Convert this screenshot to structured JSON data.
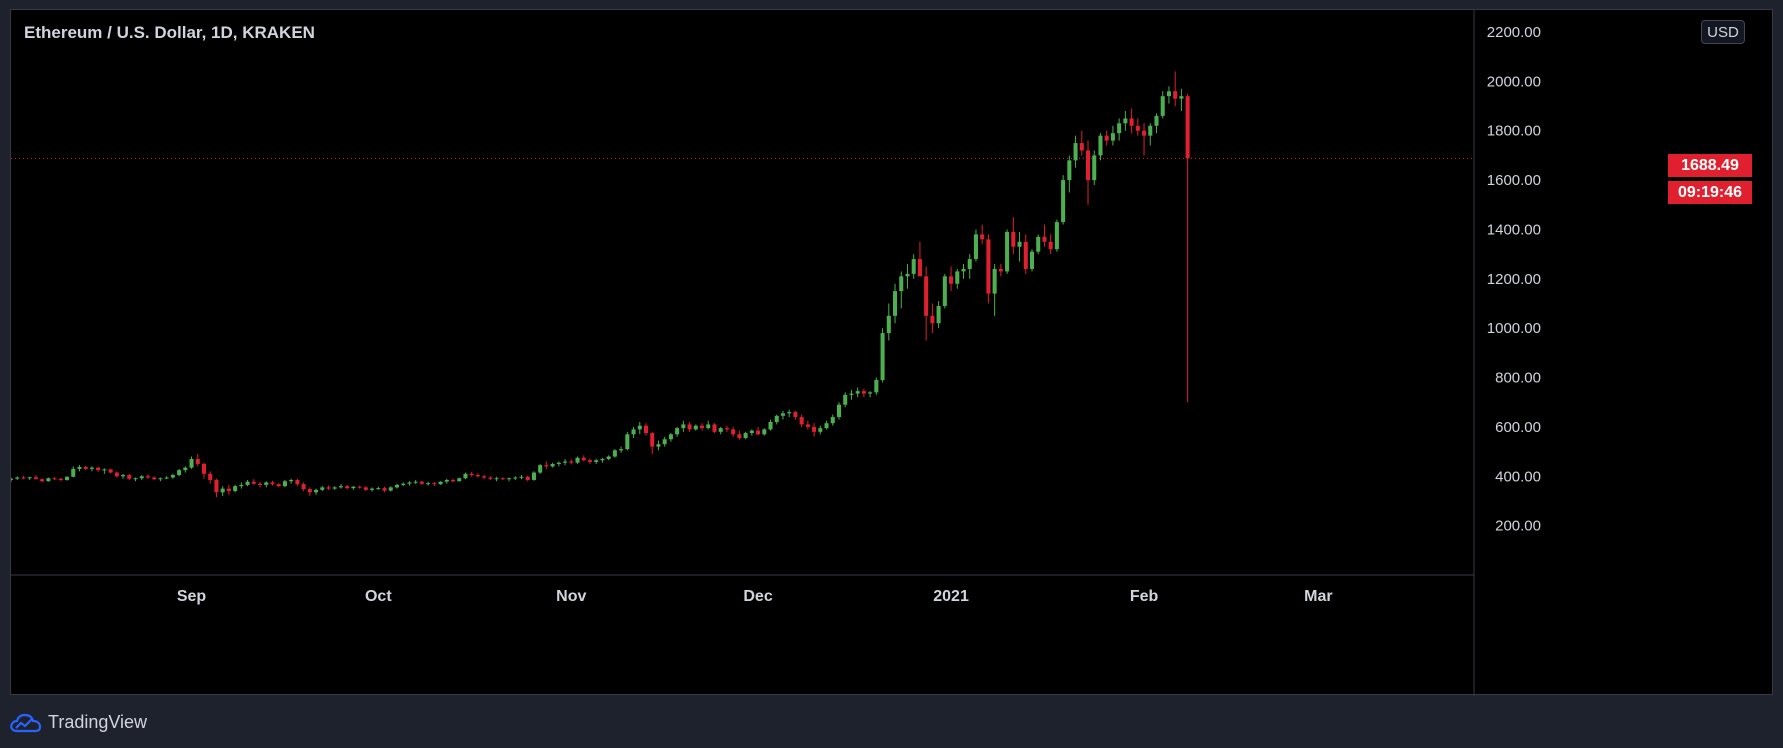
{
  "header": {
    "title": "Ethereum / U.S. Dollar, 1D, KRAKEN",
    "currency": "USD"
  },
  "last_price": {
    "value": "1688.49",
    "countdown": "09:19:46",
    "color": "#e0202f"
  },
  "brand": {
    "name": "TradingView",
    "logo_icon": "tradingview-cloud-logo-icon",
    "color": "#2962ff"
  },
  "colors": {
    "up": "#4caf50",
    "down": "#e0202f",
    "axis_text": "#d1d4dc",
    "background": "#000000"
  },
  "chart_data": {
    "type": "candlestick",
    "title": "Ethereum / U.S. Dollar, 1D, KRAKEN",
    "xlabel": "",
    "ylabel": "",
    "ylim": [
      0,
      2200
    ],
    "y_ticks": [
      "200.00",
      "400.00",
      "600.00",
      "800.00",
      "1000.00",
      "1200.00",
      "1400.00",
      "1600.00",
      "1800.00",
      "2000.00",
      "2200.00"
    ],
    "x_ticks": [
      {
        "date": "2020-09-01",
        "label": "Sep"
      },
      {
        "date": "2020-10-01",
        "label": "Oct"
      },
      {
        "date": "2020-11-01",
        "label": "Nov"
      },
      {
        "date": "2020-12-01",
        "label": "Dec"
      },
      {
        "date": "2021-01-01",
        "label": "2021"
      },
      {
        "date": "2021-02-01",
        "label": "Feb"
      },
      {
        "date": "2021-03-01",
        "label": "Mar"
      }
    ],
    "x_range": [
      "2020-08-03",
      "2021-03-26"
    ],
    "grid": false,
    "series": [
      {
        "start_date": "2020-08-03",
        "interval": "1D",
        "ohlc": [
          [
            385,
            395,
            378,
            390
          ],
          [
            390,
            400,
            385,
            395
          ],
          [
            395,
            402,
            388,
            392
          ],
          [
            392,
            398,
            385,
            396
          ],
          [
            396,
            405,
            390,
            388
          ],
          [
            388,
            392,
            375,
            380
          ],
          [
            380,
            395,
            378,
            392
          ],
          [
            392,
            396,
            385,
            390
          ],
          [
            390,
            394,
            380,
            385
          ],
          [
            385,
            400,
            382,
            398
          ],
          [
            398,
            440,
            395,
            430
          ],
          [
            430,
            445,
            420,
            438
          ],
          [
            438,
            442,
            425,
            430
          ],
          [
            430,
            440,
            420,
            435
          ],
          [
            435,
            438,
            418,
            425
          ],
          [
            425,
            432,
            410,
            428
          ],
          [
            428,
            430,
            412,
            415
          ],
          [
            415,
            420,
            395,
            400
          ],
          [
            400,
            410,
            390,
            405
          ],
          [
            405,
            410,
            385,
            390
          ],
          [
            390,
            395,
            380,
            392
          ],
          [
            392,
            405,
            385,
            400
          ],
          [
            400,
            408,
            390,
            395
          ],
          [
            395,
            400,
            385,
            388
          ],
          [
            388,
            395,
            380,
            392
          ],
          [
            392,
            400,
            388,
            395
          ],
          [
            395,
            410,
            390,
            405
          ],
          [
            405,
            430,
            400,
            425
          ],
          [
            425,
            440,
            415,
            435
          ],
          [
            435,
            480,
            430,
            470
          ],
          [
            470,
            490,
            440,
            450
          ],
          [
            450,
            455,
            390,
            410
          ],
          [
            410,
            420,
            370,
            385
          ],
          [
            385,
            390,
            315,
            335
          ],
          [
            335,
            360,
            320,
            350
          ],
          [
            350,
            365,
            325,
            340
          ],
          [
            340,
            365,
            335,
            360
          ],
          [
            360,
            375,
            350,
            365
          ],
          [
            365,
            385,
            360,
            378
          ],
          [
            378,
            388,
            365,
            370
          ],
          [
            370,
            378,
            355,
            365
          ],
          [
            365,
            380,
            355,
            375
          ],
          [
            375,
            382,
            362,
            368
          ],
          [
            368,
            372,
            355,
            360
          ],
          [
            360,
            385,
            355,
            380
          ],
          [
            380,
            390,
            370,
            385
          ],
          [
            385,
            390,
            360,
            368
          ],
          [
            368,
            375,
            340,
            348
          ],
          [
            348,
            355,
            320,
            335
          ],
          [
            335,
            350,
            325,
            345
          ],
          [
            345,
            360,
            340,
            355
          ],
          [
            355,
            362,
            345,
            350
          ],
          [
            350,
            360,
            345,
            355
          ],
          [
            355,
            368,
            350,
            360
          ],
          [
            360,
            365,
            348,
            352
          ],
          [
            352,
            360,
            345,
            358
          ],
          [
            358,
            362,
            350,
            355
          ],
          [
            355,
            360,
            340,
            345
          ],
          [
            345,
            355,
            338,
            350
          ],
          [
            350,
            358,
            345,
            352
          ],
          [
            352,
            358,
            335,
            342
          ],
          [
            342,
            360,
            338,
            355
          ],
          [
            355,
            370,
            350,
            365
          ],
          [
            365,
            375,
            360,
            370
          ],
          [
            370,
            380,
            362,
            375
          ],
          [
            375,
            385,
            368,
            378
          ],
          [
            378,
            382,
            365,
            370
          ],
          [
            370,
            378,
            362,
            372
          ],
          [
            372,
            376,
            360,
            368
          ],
          [
            368,
            380,
            365,
            378
          ],
          [
            378,
            390,
            370,
            385
          ],
          [
            385,
            390,
            375,
            380
          ],
          [
            380,
            395,
            378,
            392
          ],
          [
            392,
            415,
            388,
            410
          ],
          [
            410,
            418,
            398,
            405
          ],
          [
            405,
            412,
            395,
            400
          ],
          [
            400,
            405,
            388,
            395
          ],
          [
            395,
            400,
            385,
            390
          ],
          [
            390,
            398,
            380,
            392
          ],
          [
            392,
            396,
            385,
            388
          ],
          [
            388,
            395,
            380,
            392
          ],
          [
            392,
            400,
            385,
            395
          ],
          [
            395,
            405,
            388,
            398
          ],
          [
            398,
            402,
            380,
            385
          ],
          [
            385,
            420,
            382,
            415
          ],
          [
            415,
            450,
            410,
            445
          ],
          [
            445,
            460,
            430,
            440
          ],
          [
            440,
            455,
            435,
            450
          ],
          [
            450,
            460,
            440,
            455
          ],
          [
            455,
            470,
            445,
            460
          ],
          [
            460,
            468,
            448,
            455
          ],
          [
            455,
            480,
            450,
            475
          ],
          [
            475,
            485,
            460,
            465
          ],
          [
            465,
            472,
            450,
            458
          ],
          [
            458,
            470,
            450,
            465
          ],
          [
            465,
            475,
            455,
            470
          ],
          [
            470,
            485,
            465,
            480
          ],
          [
            480,
            510,
            475,
            505
          ],
          [
            505,
            520,
            495,
            510
          ],
          [
            510,
            580,
            505,
            570
          ],
          [
            570,
            600,
            555,
            590
          ],
          [
            590,
            620,
            570,
            605
          ],
          [
            605,
            615,
            565,
            575
          ],
          [
            575,
            580,
            490,
            520
          ],
          [
            520,
            545,
            505,
            530
          ],
          [
            530,
            560,
            520,
            550
          ],
          [
            550,
            575,
            540,
            570
          ],
          [
            570,
            600,
            560,
            595
          ],
          [
            595,
            625,
            580,
            610
          ],
          [
            610,
            620,
            580,
            590
          ],
          [
            590,
            610,
            585,
            605
          ],
          [
            605,
            615,
            585,
            595
          ],
          [
            595,
            625,
            590,
            610
          ],
          [
            610,
            615,
            575,
            580
          ],
          [
            580,
            600,
            570,
            595
          ],
          [
            595,
            605,
            580,
            590
          ],
          [
            590,
            600,
            560,
            570
          ],
          [
            570,
            585,
            548,
            555
          ],
          [
            555,
            580,
            550,
            575
          ],
          [
            575,
            590,
            565,
            585
          ],
          [
            585,
            600,
            565,
            570
          ],
          [
            570,
            595,
            565,
            590
          ],
          [
            590,
            630,
            585,
            620
          ],
          [
            620,
            650,
            610,
            645
          ],
          [
            645,
            665,
            630,
            655
          ],
          [
            655,
            670,
            640,
            660
          ],
          [
            660,
            665,
            630,
            640
          ],
          [
            640,
            650,
            600,
            610
          ],
          [
            610,
            625,
            590,
            600
          ],
          [
            600,
            615,
            560,
            580
          ],
          [
            580,
            605,
            570,
            595
          ],
          [
            595,
            625,
            590,
            615
          ],
          [
            615,
            650,
            605,
            640
          ],
          [
            640,
            700,
            630,
            690
          ],
          [
            690,
            740,
            680,
            730
          ],
          [
            730,
            750,
            710,
            735
          ],
          [
            735,
            760,
            720,
            745
          ],
          [
            745,
            755,
            720,
            735
          ],
          [
            735,
            745,
            720,
            740
          ],
          [
            740,
            800,
            730,
            790
          ],
          [
            790,
            1000,
            780,
            980
          ],
          [
            980,
            1100,
            950,
            1050
          ],
          [
            1050,
            1180,
            1020,
            1150
          ],
          [
            1150,
            1230,
            1080,
            1210
          ],
          [
            1210,
            1260,
            1160,
            1220
          ],
          [
            1220,
            1300,
            1200,
            1280
          ],
          [
            1280,
            1350,
            1230,
            1210
          ],
          [
            1210,
            1250,
            950,
            1050
          ],
          [
            1050,
            1100,
            980,
            1020
          ],
          [
            1020,
            1110,
            1000,
            1090
          ],
          [
            1090,
            1220,
            1080,
            1210
          ],
          [
            1210,
            1250,
            1150,
            1180
          ],
          [
            1180,
            1240,
            1160,
            1230
          ],
          [
            1230,
            1260,
            1200,
            1240
          ],
          [
            1240,
            1300,
            1200,
            1280
          ],
          [
            1280,
            1400,
            1270,
            1380
          ],
          [
            1380,
            1420,
            1340,
            1360
          ],
          [
            1360,
            1380,
            1100,
            1140
          ],
          [
            1140,
            1260,
            1050,
            1240
          ],
          [
            1240,
            1260,
            1210,
            1230
          ],
          [
            1230,
            1400,
            1220,
            1390
          ],
          [
            1390,
            1450,
            1300,
            1330
          ],
          [
            1330,
            1390,
            1270,
            1350
          ],
          [
            1350,
            1380,
            1220,
            1240
          ],
          [
            1240,
            1320,
            1230,
            1310
          ],
          [
            1310,
            1380,
            1300,
            1370
          ],
          [
            1370,
            1420,
            1330,
            1350
          ],
          [
            1350,
            1380,
            1300,
            1320
          ],
          [
            1320,
            1440,
            1310,
            1430
          ],
          [
            1430,
            1620,
            1420,
            1600
          ],
          [
            1600,
            1700,
            1550,
            1680
          ],
          [
            1680,
            1780,
            1650,
            1750
          ],
          [
            1750,
            1800,
            1700,
            1720
          ],
          [
            1720,
            1760,
            1500,
            1600
          ],
          [
            1600,
            1720,
            1580,
            1700
          ],
          [
            1700,
            1790,
            1680,
            1780
          ],
          [
            1780,
            1800,
            1740,
            1760
          ],
          [
            1760,
            1820,
            1740,
            1790
          ],
          [
            1790,
            1850,
            1760,
            1830
          ],
          [
            1830,
            1880,
            1800,
            1850
          ],
          [
            1850,
            1890,
            1790,
            1820
          ],
          [
            1820,
            1850,
            1780,
            1800
          ],
          [
            1800,
            1830,
            1700,
            1780
          ],
          [
            1780,
            1830,
            1740,
            1820
          ],
          [
            1820,
            1870,
            1790,
            1860
          ],
          [
            1860,
            1960,
            1850,
            1940
          ],
          [
            1940,
            1980,
            1910,
            1960
          ],
          [
            1960,
            2040,
            1900,
            1930
          ],
          [
            1930,
            1970,
            1880,
            1940
          ],
          [
            1940,
            1950,
            700,
            1688
          ]
        ]
      }
    ]
  }
}
